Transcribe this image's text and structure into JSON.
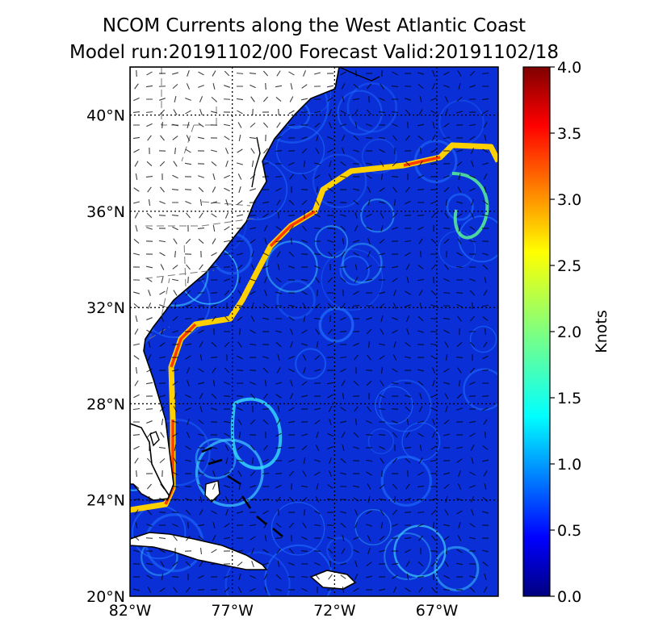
{
  "map": {
    "title_line1": "NCOM Currents along the West Atlantic Coast",
    "title_line2": "Model run:20191102/00 Forecast Valid:20191102/18",
    "lat_labels": [
      "20°N",
      "24°N",
      "28°N",
      "32°N",
      "36°N",
      "40°N"
    ],
    "lon_labels": [
      "82°W",
      "77°W",
      "72°W",
      "67°W"
    ],
    "lat_values": [
      20,
      24,
      28,
      32,
      36,
      40
    ],
    "lon_values": [
      -82,
      -77,
      -72,
      -67
    ],
    "lat_range": [
      20,
      42
    ],
    "lon_range": [
      -82,
      -64
    ],
    "grid": true
  },
  "colorbar": {
    "label": "Knots",
    "ticks": [
      "0.0",
      "0.5",
      "1.0",
      "1.5",
      "2.0",
      "2.5",
      "3.0",
      "3.5",
      "4.0"
    ],
    "range": [
      0,
      4
    ],
    "colormap": "jet",
    "colors": [
      "#00007f",
      "#0000ff",
      "#007fff",
      "#00ffff",
      "#7fff7f",
      "#ffff00",
      "#ff7f00",
      "#ff0000",
      "#7f0000"
    ]
  },
  "colors": {
    "ocean_base": "#0a2fd6",
    "land": "#ffffff",
    "coastline": "#000000"
  }
}
